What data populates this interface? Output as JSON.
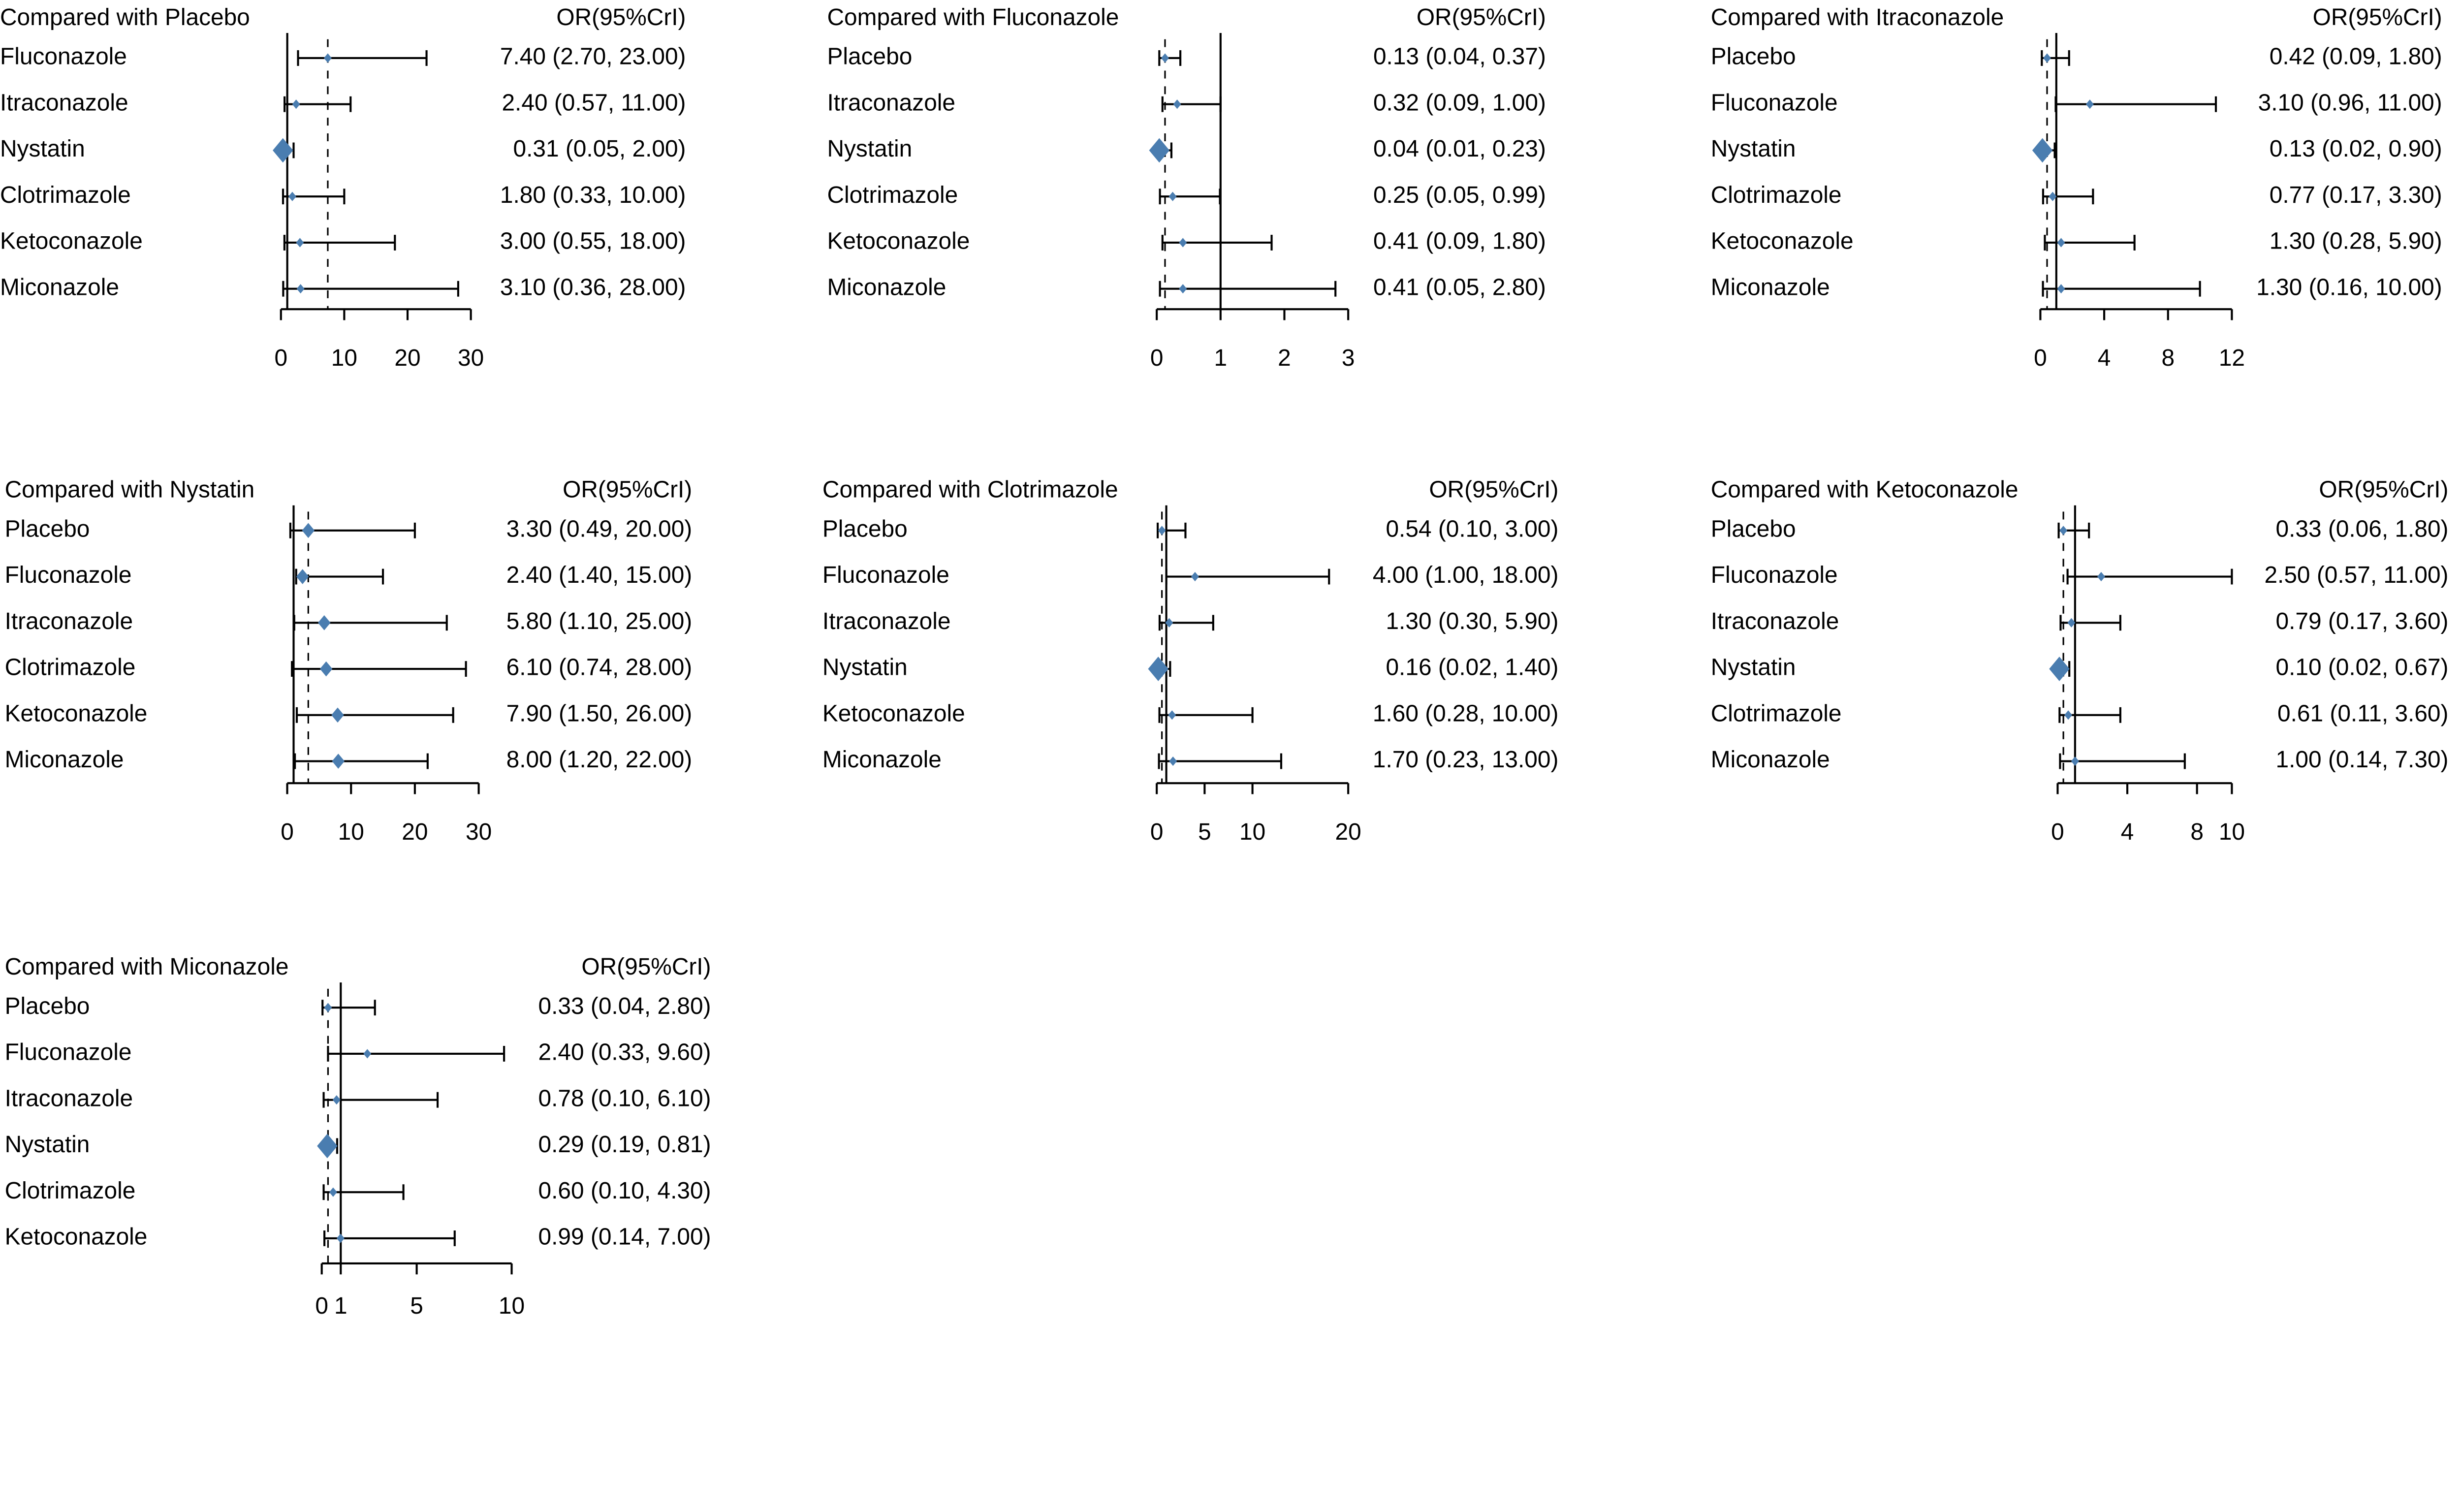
{
  "chart_data": [
    {
      "type": "forest",
      "title": "Compared with Placebo",
      "header": "OR(95%CrI)",
      "reference_dashed": 7.4,
      "xlim": [
        0,
        30
      ],
      "ticks": [
        0,
        10,
        20,
        30
      ],
      "rows": [
        {
          "label": "Fluconazole",
          "or": 7.4,
          "lo": 2.7,
          "hi": 23.0,
          "text": "7.40 (2.70, 23.00)"
        },
        {
          "label": "Itraconazole",
          "or": 2.4,
          "lo": 0.57,
          "hi": 11.0,
          "text": "2.40 (0.57, 11.00)"
        },
        {
          "label": "Nystatin",
          "or": 0.31,
          "lo": 0.05,
          "hi": 2.0,
          "text": "0.31 (0.05,  2.00)"
        },
        {
          "label": "Clotrimazole",
          "or": 1.8,
          "lo": 0.33,
          "hi": 10.0,
          "text": "1.80 (0.33, 10.00)"
        },
        {
          "label": "Ketoconazole",
          "or": 3.0,
          "lo": 0.55,
          "hi": 18.0,
          "text": "3.00 (0.55, 18.00)"
        },
        {
          "label": "Miconazole",
          "or": 3.1,
          "lo": 0.36,
          "hi": 28.0,
          "text": "3.10 (0.36, 28.00)"
        }
      ]
    },
    {
      "type": "forest",
      "title": "Compared with Fluconazole",
      "header": "OR(95%CrI)",
      "reference_dashed": 0.13,
      "xlim": [
        0,
        3
      ],
      "ticks": [
        0,
        1,
        2,
        3
      ],
      "rows": [
        {
          "label": "Placebo",
          "or": 0.13,
          "lo": 0.04,
          "hi": 0.37,
          "text": "0.13 (0.04, 0.37)"
        },
        {
          "label": "Itraconazole",
          "or": 0.32,
          "lo": 0.09,
          "hi": 1.0,
          "text": "0.32 (0.09, 1.00)"
        },
        {
          "label": "Nystatin",
          "or": 0.04,
          "lo": 0.01,
          "hi": 0.23,
          "text": "0.04 (0.01, 0.23)"
        },
        {
          "label": "Clotrimazole",
          "or": 0.25,
          "lo": 0.05,
          "hi": 0.99,
          "text": "0.25 (0.05, 0.99)"
        },
        {
          "label": "Ketoconazole",
          "or": 0.41,
          "lo": 0.09,
          "hi": 1.8,
          "text": "0.41 (0.09, 1.80)"
        },
        {
          "label": "Miconazole",
          "or": 0.41,
          "lo": 0.05,
          "hi": 2.8,
          "text": "0.41 (0.05, 2.80)"
        }
      ]
    },
    {
      "type": "forest",
      "title": "Compared with Itraconazole",
      "header": "OR(95%CrI)",
      "reference_dashed": 0.42,
      "xlim": [
        0,
        12
      ],
      "ticks": [
        0,
        4,
        8,
        12
      ],
      "rows": [
        {
          "label": "Placebo",
          "or": 0.42,
          "lo": 0.09,
          "hi": 1.8,
          "text": "0.42 (0.09,  1.80)"
        },
        {
          "label": "Fluconazole",
          "or": 3.1,
          "lo": 0.96,
          "hi": 11.0,
          "text": "3.10 (0.96, 11.00)"
        },
        {
          "label": "Nystatin",
          "or": 0.13,
          "lo": 0.02,
          "hi": 0.9,
          "text": "0.13 (0.02,  0.90)"
        },
        {
          "label": "Clotrimazole",
          "or": 0.77,
          "lo": 0.17,
          "hi": 3.3,
          "text": "0.77 (0.17,  3.30)"
        },
        {
          "label": "Ketoconazole",
          "or": 1.3,
          "lo": 0.28,
          "hi": 5.9,
          "text": "1.30 (0.28,  5.90)"
        },
        {
          "label": "Miconazole",
          "or": 1.3,
          "lo": 0.16,
          "hi": 10.0,
          "text": "1.30 (0.16, 10.00)"
        }
      ]
    },
    {
      "type": "forest",
      "title": "Compared with Nystatin",
      "header": "OR(95%CrI)",
      "reference_dashed": 3.3,
      "xlim": [
        0,
        30
      ],
      "ticks": [
        0,
        10,
        20,
        30
      ],
      "rows": [
        {
          "label": "Placebo",
          "or": 3.3,
          "lo": 0.49,
          "hi": 20.0,
          "text": "3.30 (0.49, 20.00)"
        },
        {
          "label": "Fluconazole",
          "or": 2.4,
          "lo": 1.4,
          "hi": 15.0,
          "text": "2.40 (1.40, 15.00)"
        },
        {
          "label": "Itraconazole",
          "or": 5.8,
          "lo": 1.1,
          "hi": 25.0,
          "text": "5.80 (1.10, 25.00)"
        },
        {
          "label": "Clotrimazole",
          "or": 6.1,
          "lo": 0.74,
          "hi": 28.0,
          "text": "6.10 (0.74, 28.00)"
        },
        {
          "label": "Ketoconazole",
          "or": 7.9,
          "lo": 1.5,
          "hi": 26.0,
          "text": "7.90 (1.50, 26.00)"
        },
        {
          "label": "Miconazole",
          "or": 8.0,
          "lo": 1.2,
          "hi": 22.0,
          "text": "8.00 (1.20, 22.00)"
        }
      ]
    },
    {
      "type": "forest",
      "title": "Compared with Clotrimazole",
      "header": "OR(95%CrI)",
      "reference_dashed": 0.54,
      "xlim": [
        0,
        20
      ],
      "ticks": [
        0,
        5,
        10,
        20
      ],
      "rows": [
        {
          "label": "Placebo",
          "or": 0.54,
          "lo": 0.1,
          "hi": 3.0,
          "text": "0.54 (0.10,  3.00)"
        },
        {
          "label": "Fluconazole",
          "or": 4.0,
          "lo": 1.0,
          "hi": 18.0,
          "text": "4.00 (1.00, 18.00)"
        },
        {
          "label": "Itraconazole",
          "or": 1.3,
          "lo": 0.3,
          "hi": 5.9,
          "text": "1.30 (0.30,  5.90)"
        },
        {
          "label": "Nystatin",
          "or": 0.16,
          "lo": 0.02,
          "hi": 1.4,
          "text": "0.16 (0.02,  1.40)"
        },
        {
          "label": "Ketoconazole",
          "or": 1.6,
          "lo": 0.28,
          "hi": 10.0,
          "text": "1.60 (0.28, 10.00)"
        },
        {
          "label": "Miconazole",
          "or": 1.7,
          "lo": 0.23,
          "hi": 13.0,
          "text": "1.70 (0.23, 13.00)"
        }
      ]
    },
    {
      "type": "forest",
      "title": "Compared with Ketoconazole",
      "header": "OR(95%CrI)",
      "reference_dashed": 0.33,
      "xlim": [
        0,
        10
      ],
      "ticks": [
        0,
        4,
        8,
        10
      ],
      "rows": [
        {
          "label": "Placebo",
          "or": 0.33,
          "lo": 0.06,
          "hi": 1.8,
          "text": "0.33 (0.06,  1.80)"
        },
        {
          "label": "Fluconazole",
          "or": 2.5,
          "lo": 0.57,
          "hi": 11.0,
          "text": "2.50 (0.57, 11.00)"
        },
        {
          "label": "Itraconazole",
          "or": 0.79,
          "lo": 0.17,
          "hi": 3.6,
          "text": "0.79 (0.17,  3.60)"
        },
        {
          "label": "Nystatin",
          "or": 0.1,
          "lo": 0.02,
          "hi": 0.67,
          "text": "0.10 (0.02,  0.67)"
        },
        {
          "label": "Clotrimazole",
          "or": 0.61,
          "lo": 0.11,
          "hi": 3.6,
          "text": "0.61 (0.11,  3.60)"
        },
        {
          "label": "Miconazole",
          "or": 1.0,
          "lo": 0.14,
          "hi": 7.3,
          "text": "1.00 (0.14,  7.30)"
        }
      ]
    },
    {
      "type": "forest",
      "title": "Compared with Miconazole",
      "header": "OR(95%CrI)",
      "reference_dashed": 0.33,
      "xlim": [
        0,
        10
      ],
      "ticks": [
        0,
        1,
        5,
        10
      ],
      "rows": [
        {
          "label": "Placebo",
          "or": 0.33,
          "lo": 0.04,
          "hi": 2.8,
          "text": "0.33 (0.04, 2.80)"
        },
        {
          "label": "Fluconazole",
          "or": 2.4,
          "lo": 0.33,
          "hi": 9.6,
          "text": "2.40 (0.33, 9.60)"
        },
        {
          "label": "Itraconazole",
          "or": 0.78,
          "lo": 0.1,
          "hi": 6.1,
          "text": "0.78 (0.10, 6.10)"
        },
        {
          "label": "Nystatin",
          "or": 0.29,
          "lo": 0.19,
          "hi": 0.81,
          "text": "0.29 (0.19, 0.81)"
        },
        {
          "label": "Clotrimazole",
          "or": 0.6,
          "lo": 0.1,
          "hi": 4.3,
          "text": "0.60 (0.10, 4.30)"
        },
        {
          "label": "Ketoconazole",
          "or": 0.99,
          "lo": 0.14,
          "hi": 7.0,
          "text": "0.99 (0.14, 7.00)"
        }
      ]
    }
  ],
  "colors": {
    "marker": "#4a7db0",
    "line": "#000000"
  }
}
